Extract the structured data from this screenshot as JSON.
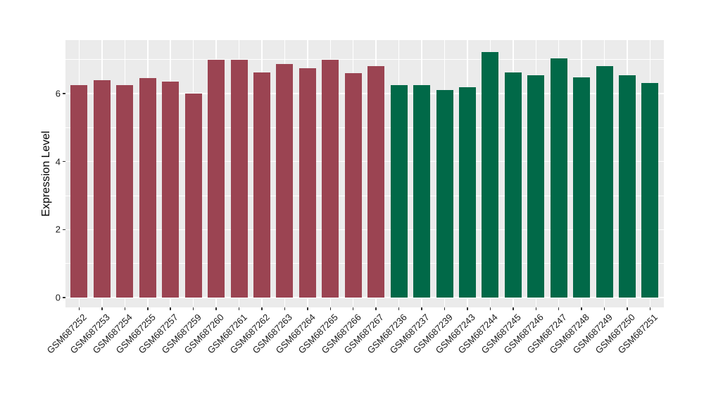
{
  "colors": {
    "figure_background": "#FFFFFF",
    "panel_background": "#EBEBEB",
    "gridline": "#FFFFFF",
    "tick_mark": "#333333",
    "axis_text": "#1A1A1A",
    "group_1_color": "#9B4452",
    "group_2_color": "#016948"
  },
  "chart_data": {
    "type": "bar",
    "title": "",
    "xlabel": "",
    "ylabel": "Expression Level",
    "ylim": [
      -0.3,
      7.56
    ],
    "y_major_ticks": [
      0,
      2,
      4,
      6
    ],
    "y_minor_gridlines": [
      1,
      3,
      5,
      7
    ],
    "grid": "on",
    "legend": "none",
    "groups": {
      "group-1": "#9B4452",
      "group-2": "#016948"
    },
    "categories": [
      "GSM687252",
      "GSM687253",
      "GSM687254",
      "GSM687255",
      "GSM687257",
      "GSM687259",
      "GSM687260",
      "GSM687261",
      "GSM687262",
      "GSM687263",
      "GSM687264",
      "GSM687265",
      "GSM687266",
      "GSM687267",
      "GSM687236",
      "GSM687237",
      "GSM687239",
      "GSM687243",
      "GSM687244",
      "GSM687245",
      "GSM687246",
      "GSM687247",
      "GSM687248",
      "GSM687249",
      "GSM687250",
      "GSM687251"
    ],
    "bars": [
      {
        "label": "GSM687252",
        "value": 6.25,
        "group": "group-1"
      },
      {
        "label": "GSM687253",
        "value": 6.39,
        "group": "group-1"
      },
      {
        "label": "GSM687254",
        "value": 6.25,
        "group": "group-1"
      },
      {
        "label": "GSM687255",
        "value": 6.46,
        "group": "group-1"
      },
      {
        "label": "GSM687257",
        "value": 6.36,
        "group": "group-1"
      },
      {
        "label": "GSM687259",
        "value": 6.01,
        "group": "group-1"
      },
      {
        "label": "GSM687260",
        "value": 7.0,
        "group": "group-1"
      },
      {
        "label": "GSM687261",
        "value": 7.0,
        "group": "group-1"
      },
      {
        "label": "GSM687262",
        "value": 6.62,
        "group": "group-1"
      },
      {
        "label": "GSM687263",
        "value": 6.87,
        "group": "group-1"
      },
      {
        "label": "GSM687264",
        "value": 6.75,
        "group": "group-1"
      },
      {
        "label": "GSM687265",
        "value": 7.0,
        "group": "group-1"
      },
      {
        "label": "GSM687266",
        "value": 6.6,
        "group": "group-1"
      },
      {
        "label": "GSM687267",
        "value": 6.81,
        "group": "group-1"
      },
      {
        "label": "GSM687236",
        "value": 6.24,
        "group": "group-2"
      },
      {
        "label": "GSM687237",
        "value": 6.24,
        "group": "group-2"
      },
      {
        "label": "GSM687239",
        "value": 6.1,
        "group": "group-2"
      },
      {
        "label": "GSM687243",
        "value": 6.18,
        "group": "group-2"
      },
      {
        "label": "GSM687244",
        "value": 7.22,
        "group": "group-2"
      },
      {
        "label": "GSM687245",
        "value": 6.62,
        "group": "group-2"
      },
      {
        "label": "GSM687246",
        "value": 6.53,
        "group": "group-2"
      },
      {
        "label": "GSM687247",
        "value": 7.03,
        "group": "group-2"
      },
      {
        "label": "GSM687248",
        "value": 6.47,
        "group": "group-2"
      },
      {
        "label": "GSM687249",
        "value": 6.8,
        "group": "group-2"
      },
      {
        "label": "GSM687250",
        "value": 6.54,
        "group": "group-2"
      },
      {
        "label": "GSM687251",
        "value": 6.31,
        "group": "group-2"
      }
    ]
  }
}
